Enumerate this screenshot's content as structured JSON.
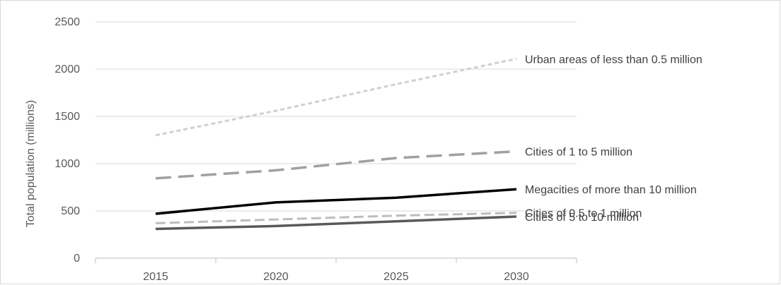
{
  "chart_data": {
    "type": "line",
    "title": "",
    "xlabel": "",
    "ylabel": "Total population (millions)",
    "x": [
      "2015",
      "2020",
      "2025",
      "2030"
    ],
    "ylim": [
      0,
      2500
    ],
    "yticks": [
      0,
      500,
      1000,
      1500,
      2000,
      2500
    ],
    "grid": true,
    "legend": "series labels at line ends (right)",
    "series": [
      {
        "name": "Urban areas of less than 0.5 million",
        "values": [
          1300,
          1560,
          1840,
          2110
        ],
        "color": "#d0d0d0",
        "dash": "short-dash"
      },
      {
        "name": "Cities of 1 to 5 million",
        "values": [
          845,
          930,
          1060,
          1130
        ],
        "color": "#a0a0a0",
        "dash": "long-dash"
      },
      {
        "name": "Megacities of more than 10 million",
        "values": [
          470,
          590,
          640,
          730
        ],
        "color": "#000000",
        "dash": "solid"
      },
      {
        "name": "Cities of 0.5 to 1 million",
        "values": [
          370,
          410,
          450,
          480
        ],
        "color": "#bdbdbd",
        "dash": "dash"
      },
      {
        "name": "Cities of 5 to 10 million",
        "values": [
          310,
          340,
          390,
          440
        ],
        "color": "#595959",
        "dash": "solid"
      }
    ]
  }
}
